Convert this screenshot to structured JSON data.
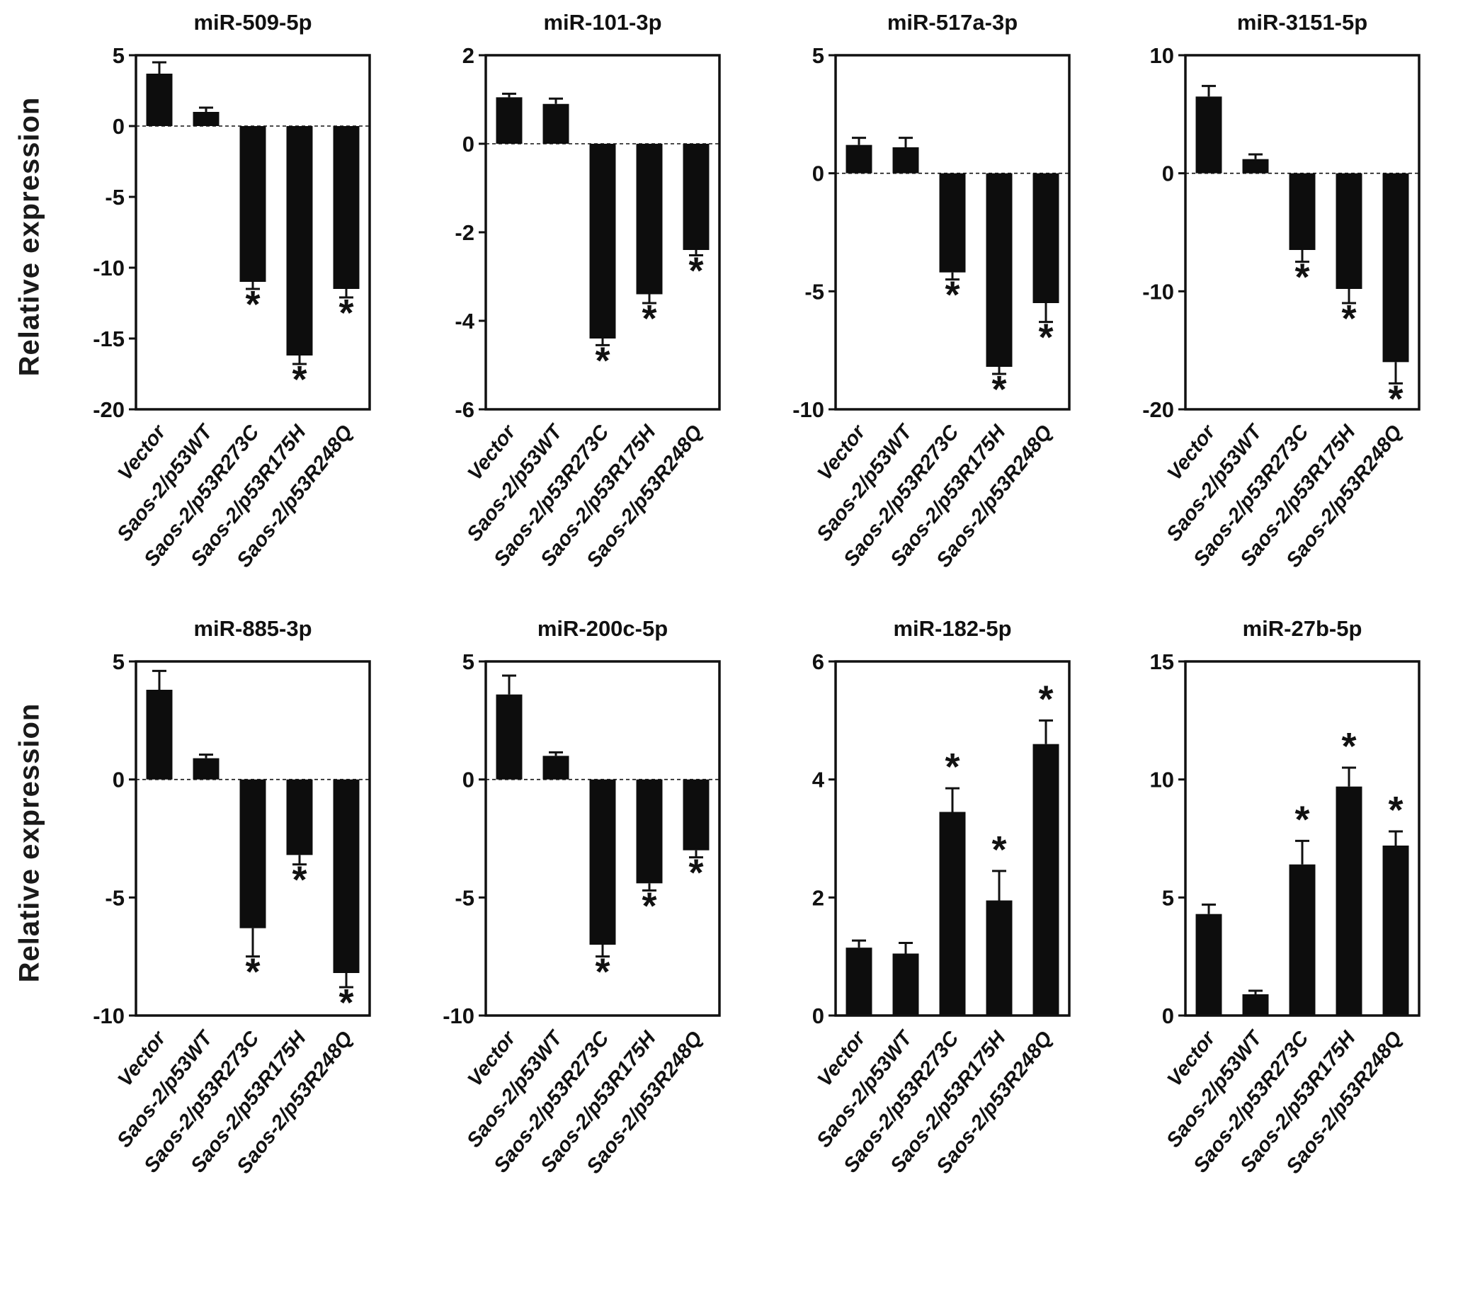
{
  "figure": {
    "rows": [
      {
        "ylabel": "Relative expression"
      },
      {
        "ylabel": "Relative expression"
      }
    ],
    "bar_color": "#0d0d0d",
    "axis_color": "#111111"
  },
  "chart_data": [
    {
      "type": "bar",
      "title": "miR-509-5p",
      "categories": [
        "Vector",
        "Saos-2/p53WT",
        "Saos-2/p53R273C",
        "Saos-2/p53R175H",
        "Saos-2/p53R248Q"
      ],
      "values": [
        3.7,
        1.0,
        -11.0,
        -16.2,
        -11.5
      ],
      "errors": [
        0.8,
        0.3,
        0.5,
        0.6,
        0.6
      ],
      "significant": [
        false,
        false,
        true,
        true,
        true
      ],
      "ylim": [
        -20,
        5
      ],
      "yticks": [
        5,
        0,
        -5,
        -10,
        -15,
        -20
      ]
    },
    {
      "type": "bar",
      "title": "miR-101-3p",
      "categories": [
        "Vector",
        "Saos-2/p53WT",
        "Saos-2/p53R273C",
        "Saos-2/p53R175H",
        "Saos-2/p53R248Q"
      ],
      "values": [
        1.05,
        0.9,
        -4.4,
        -3.4,
        -2.4
      ],
      "errors": [
        0.08,
        0.12,
        0.15,
        0.2,
        0.12
      ],
      "significant": [
        false,
        false,
        true,
        true,
        true
      ],
      "ylim": [
        -6,
        2
      ],
      "yticks": [
        2,
        0,
        -2,
        -4,
        -6
      ]
    },
    {
      "type": "bar",
      "title": "miR-517a-3p",
      "categories": [
        "Vector",
        "Saos-2/p53WT",
        "Saos-2/p53R273C",
        "Saos-2/p53R175H",
        "Saos-2/p53R248Q"
      ],
      "values": [
        1.2,
        1.1,
        -4.2,
        -8.2,
        -5.5
      ],
      "errors": [
        0.3,
        0.4,
        0.3,
        0.3,
        0.8
      ],
      "significant": [
        false,
        false,
        true,
        true,
        true
      ],
      "ylim": [
        -10,
        5
      ],
      "yticks": [
        5,
        0,
        -5,
        -10
      ]
    },
    {
      "type": "bar",
      "title": "miR-3151-5p",
      "categories": [
        "Vector",
        "Saos-2/p53WT",
        "Saos-2/p53R273C",
        "Saos-2/p53R175H",
        "Saos-2/p53R248Q"
      ],
      "values": [
        6.5,
        1.2,
        -6.5,
        -9.8,
        -16.0
      ],
      "errors": [
        0.9,
        0.4,
        1.0,
        1.2,
        1.8
      ],
      "significant": [
        false,
        false,
        true,
        true,
        true
      ],
      "ylim": [
        -20,
        10
      ],
      "yticks": [
        10,
        0,
        -10,
        -20
      ]
    },
    {
      "type": "bar",
      "title": "miR-885-3p",
      "categories": [
        "Vector",
        "Saos-2/p53WT",
        "Saos-2/p53R273C",
        "Saos-2/p53R175H",
        "Saos-2/p53R248Q"
      ],
      "values": [
        3.8,
        0.9,
        -6.3,
        -3.2,
        -8.2
      ],
      "errors": [
        0.8,
        0.15,
        1.2,
        0.4,
        0.6
      ],
      "significant": [
        false,
        false,
        true,
        true,
        true
      ],
      "ylim": [
        -10,
        5
      ],
      "yticks": [
        5,
        0,
        -5,
        -10
      ]
    },
    {
      "type": "bar",
      "title": "miR-200c-5p",
      "categories": [
        "Vector",
        "Saos-2/p53WT",
        "Saos-2/p53R273C",
        "Saos-2/p53R175H",
        "Saos-2/p53R248Q"
      ],
      "values": [
        3.6,
        1.0,
        -7.0,
        -4.4,
        -3.0
      ],
      "errors": [
        0.8,
        0.15,
        0.5,
        0.3,
        0.3
      ],
      "significant": [
        false,
        false,
        true,
        true,
        true
      ],
      "ylim": [
        -10,
        5
      ],
      "yticks": [
        5,
        0,
        -5,
        -10
      ]
    },
    {
      "type": "bar",
      "title": "miR-182-5p",
      "categories": [
        "Vector",
        "Saos-2/p53WT",
        "Saos-2/p53R273C",
        "Saos-2/p53R175H",
        "Saos-2/p53R248Q"
      ],
      "values": [
        1.15,
        1.05,
        3.45,
        1.95,
        4.6
      ],
      "errors": [
        0.12,
        0.18,
        0.4,
        0.5,
        0.4
      ],
      "significant": [
        false,
        false,
        true,
        true,
        true
      ],
      "ylim": [
        0,
        6
      ],
      "yticks": [
        6,
        4,
        2,
        0
      ]
    },
    {
      "type": "bar",
      "title": "miR-27b-5p",
      "categories": [
        "Vector",
        "Saos-2/p53WT",
        "Saos-2/p53R273C",
        "Saos-2/p53R175H",
        "Saos-2/p53R248Q"
      ],
      "values": [
        4.3,
        0.9,
        6.4,
        9.7,
        7.2
      ],
      "errors": [
        0.4,
        0.15,
        1.0,
        0.8,
        0.6
      ],
      "significant": [
        false,
        false,
        true,
        true,
        true
      ],
      "ylim": [
        0,
        15
      ],
      "yticks": [
        15,
        10,
        5,
        0
      ]
    }
  ]
}
